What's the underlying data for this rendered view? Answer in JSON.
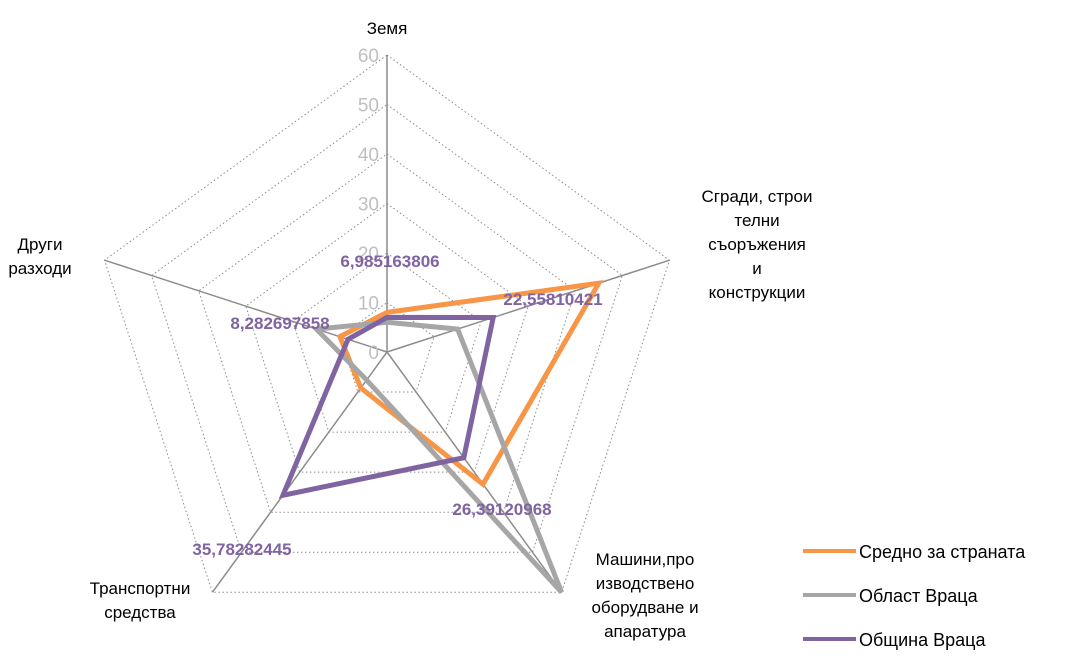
{
  "chart_data": {
    "type": "radar",
    "categories": [
      [
        "Земя"
      ],
      [
        "Сгради, строи",
        "телни",
        "съоръжения",
        "и",
        "конструкции"
      ],
      [
        "Машини,про",
        "изводствено",
        "оборудване и",
        "апаратура"
      ],
      [
        "Транспортни",
        "средства"
      ],
      [
        "Други",
        "разходи"
      ]
    ],
    "ticks": [
      "0",
      "10",
      "20",
      "30",
      "40",
      "50",
      "60"
    ],
    "rmax": 60,
    "series": [
      {
        "name": "Средно за страната",
        "color": "#f79646",
        "values": [
          8,
          45,
          33,
          9,
          10
        ]
      },
      {
        "name": "Област Враца",
        "color": "#a6a6a6",
        "values": [
          6,
          15,
          60,
          7,
          15
        ]
      },
      {
        "name": "Община Враца",
        "color": "#8064a2",
        "values": [
          6.985163806,
          22.55810421,
          26.39120968,
          35.78282445,
          8.282697858
        ]
      }
    ],
    "data_labels": [
      "6,985163806",
      "22,55810421",
      "26,39120968",
      "35,78282445",
      "8,282697858"
    ],
    "legend_position": "bottom-right",
    "grid": true
  }
}
